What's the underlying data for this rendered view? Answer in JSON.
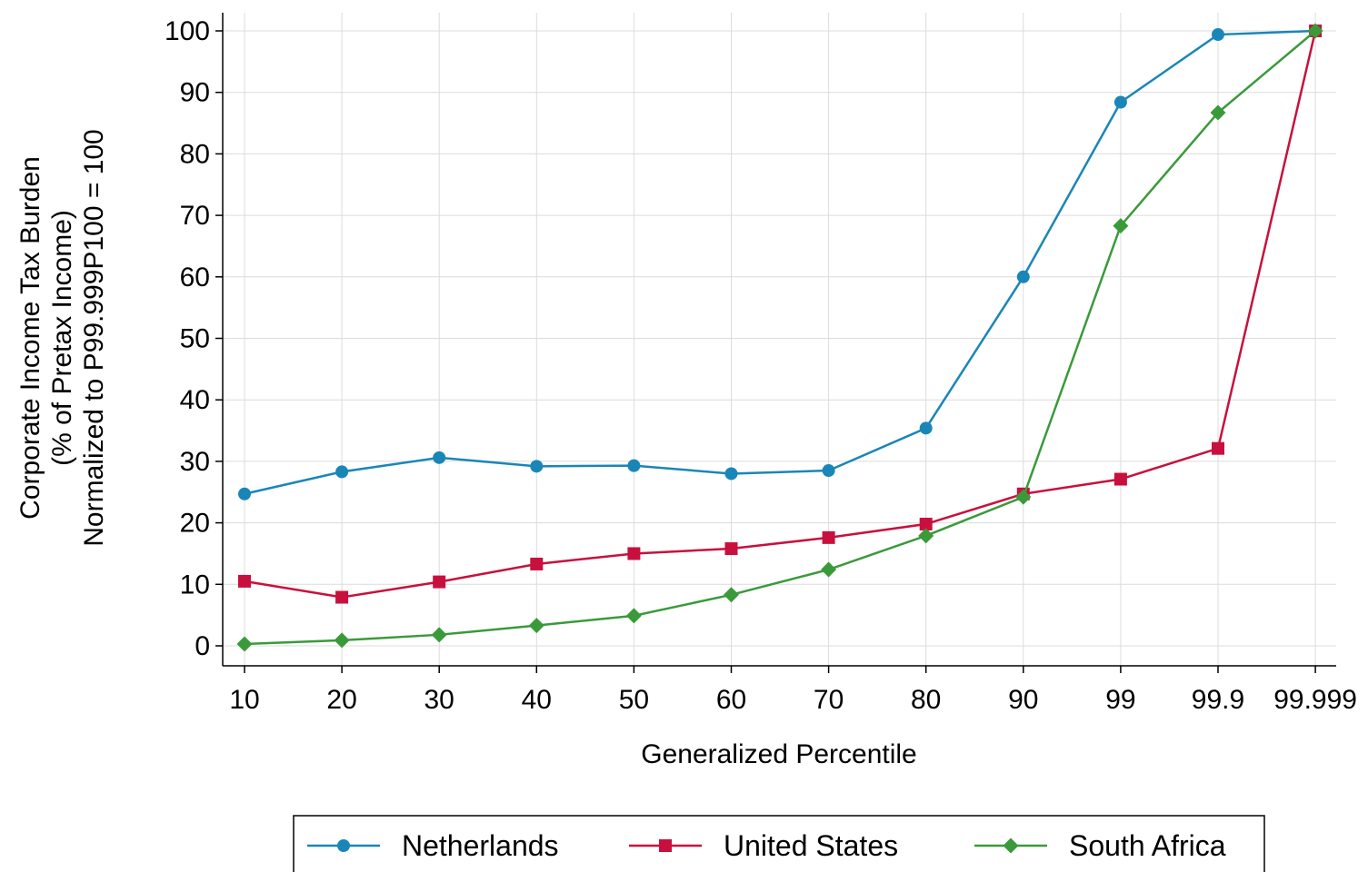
{
  "chart_data": {
    "type": "line",
    "title": "",
    "xlabel": "Generalized Percentile",
    "ylabel_lines": [
      "Corporate Income Tax Burden",
      "(% of Pretax Income)",
      "Normalized to P99.999P100 = 100"
    ],
    "categories": [
      "10",
      "20",
      "30",
      "40",
      "50",
      "60",
      "70",
      "80",
      "90",
      "99",
      "99.9",
      "99.999"
    ],
    "ylim": [
      0,
      100
    ],
    "yticks": [
      0,
      10,
      20,
      30,
      40,
      50,
      60,
      70,
      80,
      90,
      100
    ],
    "grid": true,
    "legend_position": "bottom",
    "series": [
      {
        "name": "Netherlands",
        "color": "#1a86b8",
        "marker": "circle",
        "values": [
          24.7,
          28.3,
          30.6,
          29.2,
          29.3,
          28.0,
          28.5,
          35.4,
          60.0,
          88.4,
          99.4,
          100
        ]
      },
      {
        "name": "United States",
        "color": "#c8103e",
        "marker": "square",
        "values": [
          10.5,
          7.9,
          10.4,
          13.3,
          15.0,
          15.8,
          17.6,
          19.8,
          24.7,
          27.1,
          32.1,
          100
        ]
      },
      {
        "name": "South Africa",
        "color": "#3a9a3a",
        "marker": "diamond",
        "values": [
          0.3,
          0.9,
          1.8,
          3.3,
          4.9,
          8.3,
          12.4,
          17.9,
          24.2,
          68.3,
          86.7,
          100
        ]
      }
    ]
  }
}
